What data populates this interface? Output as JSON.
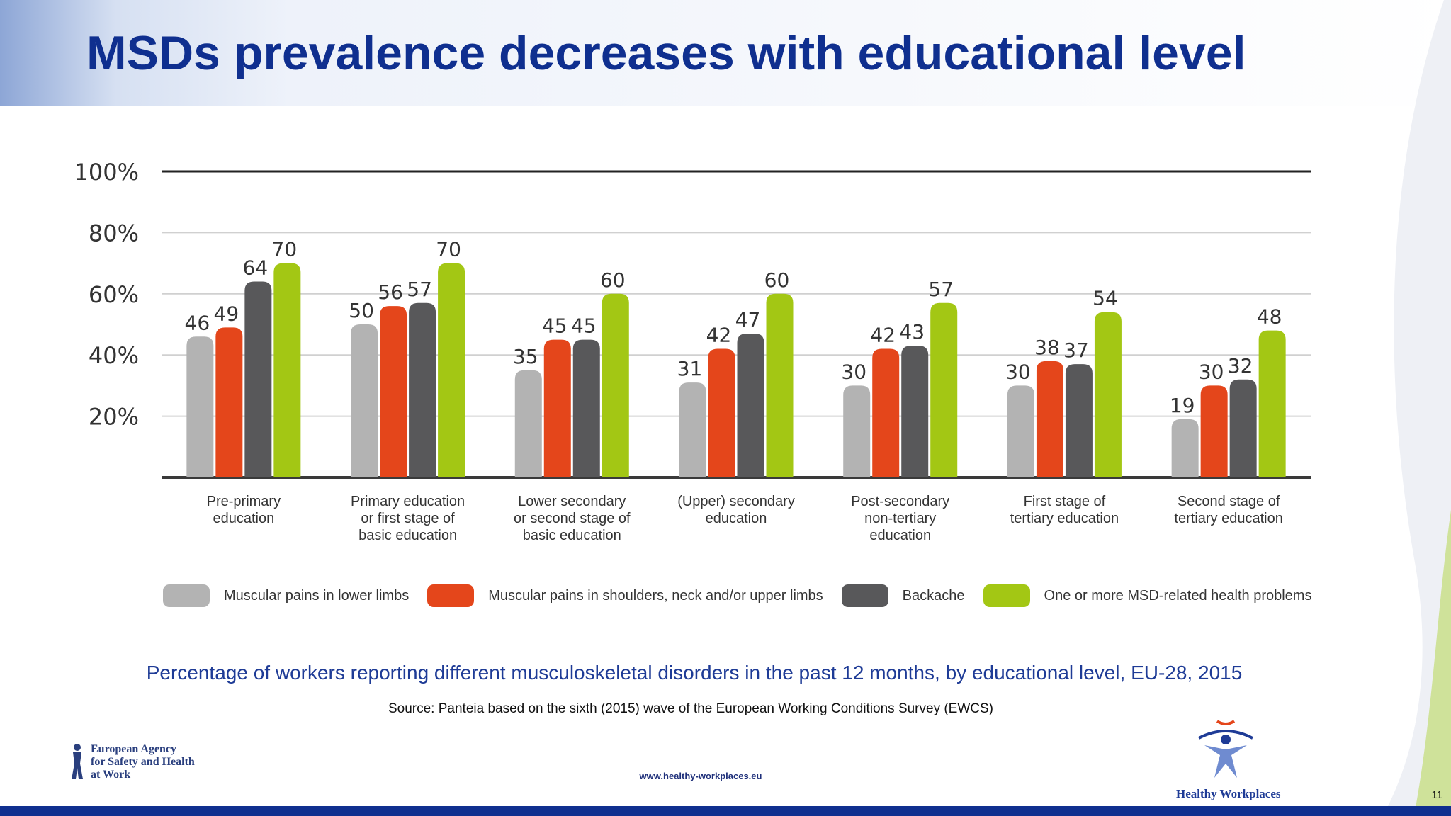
{
  "slide": {
    "title": "MSDs prevalence decreases with educational level",
    "caption": "Percentage of workers reporting different musculoskeletal disorders in the past 12 months, by educational level, EU-28, 2015",
    "source": "Source: Panteia based on the sixth (2015) wave of the European Working Conditions Survey (EWCS)",
    "url": "www.healthy-workplaces.eu",
    "page_number": "11",
    "agency_logo": {
      "line1": "European Agency",
      "line2": "for Safety and Health",
      "line3": "at Work",
      "icon": "eu-osha-figure-icon"
    },
    "hw_logo": {
      "text": "Healthy Workplaces",
      "icon": "star-person-icon"
    }
  },
  "colors": {
    "title": "#0f2f8f",
    "lower_limbs": "#b3b3b3",
    "upper_limbs": "#e4461b",
    "backache": "#58585a",
    "msd": "#a3c714"
  },
  "chart_data": {
    "type": "bar",
    "categories": [
      [
        "Pre-primary",
        "education"
      ],
      [
        "Primary education",
        "or first stage of",
        "basic education"
      ],
      [
        "Lower secondary",
        "or second stage of",
        "basic education"
      ],
      [
        "(Upper) secondary",
        "education"
      ],
      [
        "Post-secondary",
        "non-tertiary",
        "education"
      ],
      [
        "First stage of",
        "tertiary education"
      ],
      [
        "Second stage of",
        "tertiary education"
      ]
    ],
    "series": [
      {
        "name": "Muscular pains in lower limbs",
        "color": "#b3b3b3",
        "values": [
          46,
          50,
          35,
          31,
          30,
          30,
          19
        ]
      },
      {
        "name": "Muscular pains in shoulders, neck and/or upper limbs",
        "color": "#e4461b",
        "values": [
          49,
          56,
          45,
          42,
          42,
          38,
          30
        ]
      },
      {
        "name": "Backache",
        "color": "#58585a",
        "values": [
          64,
          57,
          45,
          47,
          43,
          37,
          32
        ]
      },
      {
        "name": "One or more MSD-related health problems",
        "color": "#a3c714",
        "values": [
          70,
          70,
          60,
          60,
          57,
          54,
          48
        ]
      }
    ],
    "ylim": [
      0,
      100
    ],
    "yticks": [
      "20%",
      "40%",
      "60%",
      "80%",
      "100%"
    ],
    "ytick_values": [
      20,
      40,
      60,
      80,
      100
    ],
    "grid": true,
    "legend_position": "bottom"
  }
}
